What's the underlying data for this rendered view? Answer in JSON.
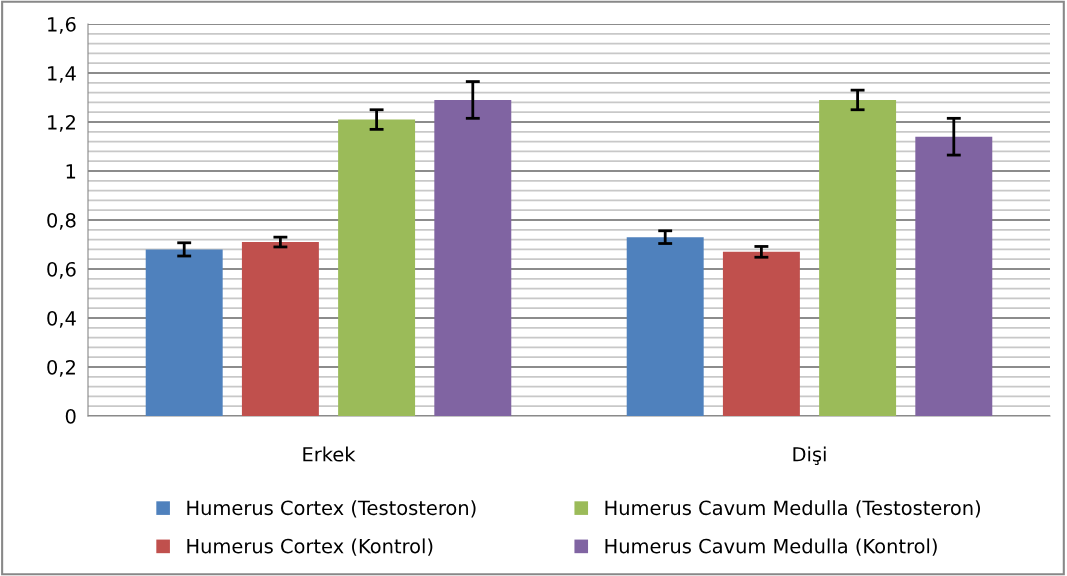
{
  "chart_data": {
    "type": "bar",
    "categories": [
      "Erkek",
      "Dişi"
    ],
    "series": [
      {
        "name": "Humerus Cortex (Testosteron)",
        "color": "#4f81bd",
        "values": [
          0.68,
          0.73
        ],
        "errors": [
          0.027,
          0.026
        ]
      },
      {
        "name": "Humerus Cortex (Kontrol)",
        "color": "#c0504d",
        "values": [
          0.71,
          0.67
        ],
        "errors": [
          0.02,
          0.022
        ]
      },
      {
        "name": "Humerus Cavum Medulla (Testosteron)",
        "color": "#9bbb59",
        "values": [
          1.21,
          1.29
        ],
        "errors": [
          0.04,
          0.04
        ]
      },
      {
        "name": "Humerus Cavum Medulla (Kontrol)",
        "color": "#8064a2",
        "values": [
          1.29,
          1.14
        ],
        "errors": [
          0.075,
          0.075
        ]
      }
    ],
    "ylim": [
      0,
      1.6
    ],
    "yticks": [
      {
        "value": 0,
        "label": "0"
      },
      {
        "value": 0.2,
        "label": "0,2"
      },
      {
        "value": 0.4,
        "label": "0,4"
      },
      {
        "value": 0.6,
        "label": "0,6"
      },
      {
        "value": 0.8,
        "label": "0,8"
      },
      {
        "value": 1,
        "label": "1"
      },
      {
        "value": 1.2,
        "label": "1,2"
      },
      {
        "value": 1.4,
        "label": "1,4"
      },
      {
        "value": 1.6,
        "label": "1,6"
      }
    ],
    "grid": "y",
    "legend": "bottom"
  }
}
